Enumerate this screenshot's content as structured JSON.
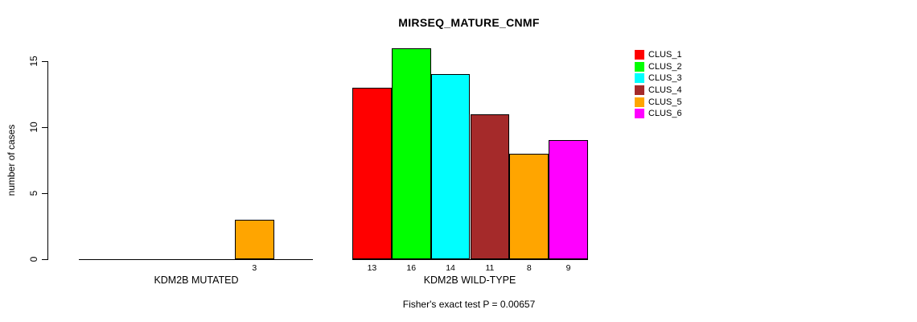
{
  "chart_data": {
    "type": "bar",
    "title": "MIRSEQ_MATURE_CNMF",
    "ylabel": "number of cases",
    "xlabel": "",
    "yticks": [
      0,
      5,
      10,
      15
    ],
    "ylim": [
      0,
      16
    ],
    "grid": false,
    "legend_position": "right",
    "clusters": [
      {
        "name": "CLUS_1",
        "color": "#FF0000"
      },
      {
        "name": "CLUS_2",
        "color": "#00FF00"
      },
      {
        "name": "CLUS_3",
        "color": "#00FFFF"
      },
      {
        "name": "CLUS_4",
        "color": "#A52A2A"
      },
      {
        "name": "CLUS_5",
        "color": "#FFA500"
      },
      {
        "name": "CLUS_6",
        "color": "#FF00FF"
      }
    ],
    "groups": [
      {
        "label": "KDM2B MUTATED",
        "values": [
          0,
          0,
          0,
          0,
          3,
          0
        ]
      },
      {
        "label": "KDM2B WILD-TYPE",
        "values": [
          13,
          16,
          14,
          11,
          8,
          9
        ]
      }
    ],
    "footnote": "Fisher's exact test P = 0.00657"
  }
}
